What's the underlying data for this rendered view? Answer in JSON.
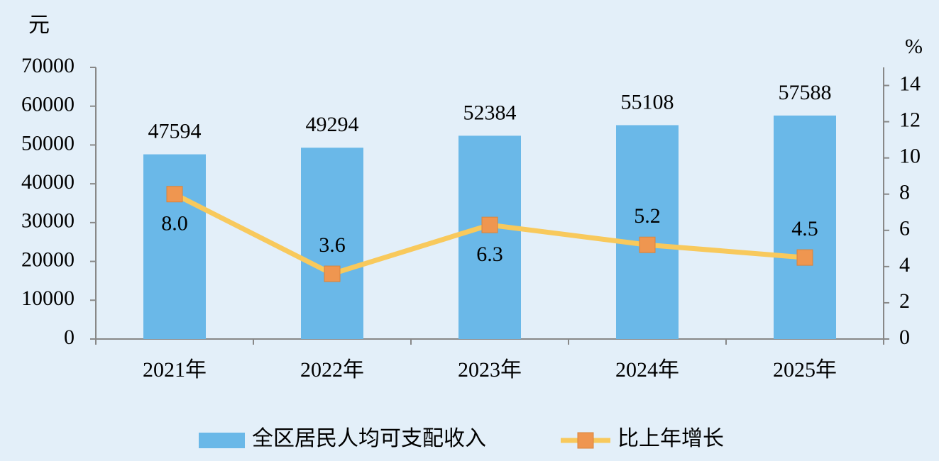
{
  "chart_data": {
    "type": "bar",
    "y_unit": "元",
    "y2_unit": "%",
    "categories": [
      "2021年",
      "2022年",
      "2023年",
      "2024年",
      "2025年"
    ],
    "series": [
      {
        "name": "全区居民人均可支配收入",
        "type": "bar",
        "color": "#6ab8e8",
        "values": [
          47594,
          49294,
          52384,
          55108,
          57588
        ]
      },
      {
        "name": "比上年增长",
        "type": "line",
        "axis": "y2",
        "color": "#f8c95c",
        "marker_color": "#ef9650",
        "values": [
          8.0,
          3.6,
          6.3,
          5.2,
          4.5
        ],
        "value_labels": [
          "8.0",
          "3.6",
          "6.3",
          "5.2",
          "4.5"
        ]
      }
    ],
    "ylim": [
      0,
      70000
    ],
    "yticks": [
      0,
      10000,
      20000,
      30000,
      40000,
      50000,
      60000,
      70000
    ],
    "y2lim": [
      0,
      15
    ],
    "y2ticks": [
      0,
      2,
      4,
      6,
      8,
      10,
      12,
      14
    ],
    "legend": "bottom"
  }
}
